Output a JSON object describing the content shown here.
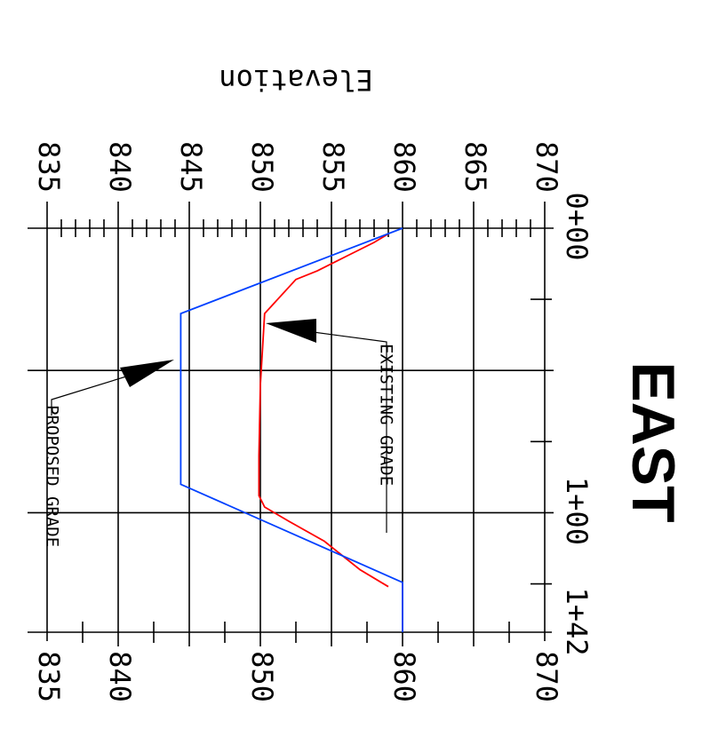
{
  "page_title": "EAST",
  "chart_data": {
    "type": "line",
    "title": "EAST",
    "ylabel": "Elevation",
    "xlim": [
      0,
      142
    ],
    "ylim": [
      835,
      870
    ],
    "x_tick_labels": [
      "0+00",
      "1+00",
      "1+42"
    ],
    "y_tick_labels_left": [
      "835",
      "840",
      "845",
      "850",
      "855",
      "860",
      "865",
      "870"
    ],
    "y_tick_labels_right": [
      "835",
      "840",
      "850",
      "860",
      "870"
    ],
    "grid": true,
    "series": [
      {
        "name": "EXISTING GRADE",
        "color": "#ff0000",
        "points": [
          [
            2,
            859
          ],
          [
            5,
            858
          ],
          [
            10,
            856
          ],
          [
            15,
            854
          ],
          [
            18,
            852.5
          ],
          [
            30,
            850.3
          ],
          [
            55,
            850
          ],
          [
            80,
            849.9
          ],
          [
            94,
            849.9
          ],
          [
            98,
            850.3
          ],
          [
            103,
            852
          ],
          [
            110,
            854.5
          ],
          [
            120,
            857
          ],
          [
            126,
            859
          ]
        ]
      },
      {
        "name": "PROPOSED GRADE",
        "color": "#0040ff",
        "points": [
          [
            0,
            860
          ],
          [
            30,
            844.4
          ],
          [
            90,
            844.4
          ],
          [
            124.5,
            860
          ],
          [
            142,
            860
          ]
        ]
      }
    ],
    "annotations": [
      {
        "text": "EXISTING GRADE",
        "x": 35,
        "y": 850
      },
      {
        "text": "PROPOSED GRADE",
        "x": 45,
        "y": 844.4
      }
    ]
  }
}
